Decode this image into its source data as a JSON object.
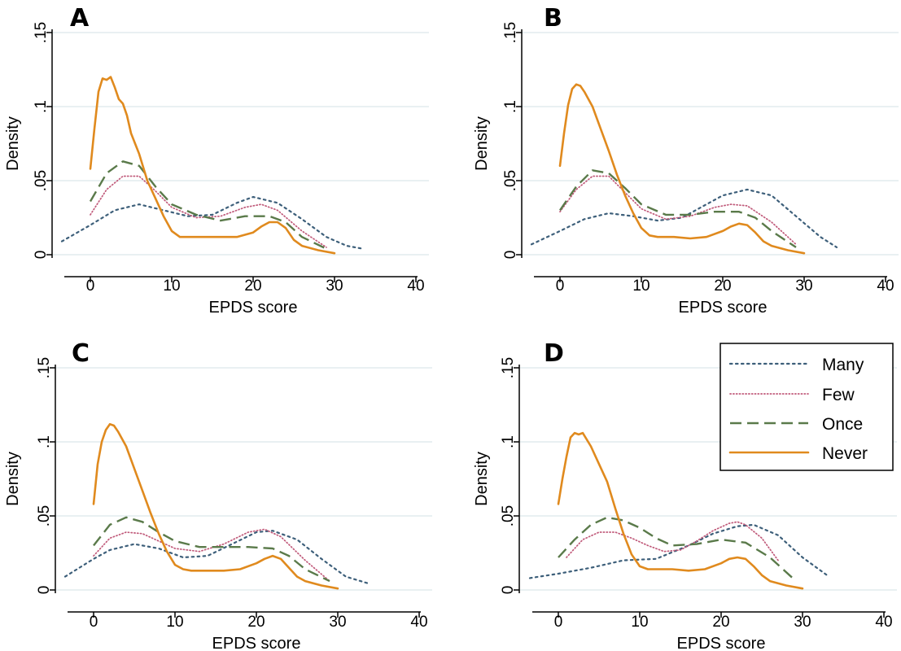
{
  "colors": {
    "grid": "#dce8ea",
    "axis": "#000000",
    "many": "#3d5f7a",
    "few": "#c05a7a",
    "once": "#5a7a4a",
    "never": "#e08a1e"
  },
  "legend": {
    "items": [
      {
        "key": "many",
        "label": "Many",
        "style": "dotted"
      },
      {
        "key": "few",
        "label": "Few",
        "style": "fine-dotted"
      },
      {
        "key": "once",
        "label": "Once",
        "style": "dashed"
      },
      {
        "key": "never",
        "label": "Never",
        "style": "solid"
      }
    ]
  },
  "chart_data": [
    {
      "type": "line",
      "panel": "A",
      "xlabel": "EPDS score",
      "ylabel": "Density",
      "xlim": [
        -4,
        40
      ],
      "ylim": [
        0,
        0.15
      ],
      "xticks": [
        0,
        10,
        20,
        30,
        40
      ],
      "yticks": [
        0,
        0.05,
        0.1,
        0.15
      ],
      "ytick_labels": [
        "0",
        ".05",
        ".1",
        ".15"
      ],
      "grid": true,
      "series": [
        {
          "name": "Many",
          "key": "many",
          "style": "dotted",
          "x": [
            -3.5,
            0,
            3,
            6,
            9,
            12,
            15,
            18,
            20,
            23,
            26,
            29,
            31.5,
            33.5
          ],
          "y": [
            0.009,
            0.02,
            0.03,
            0.034,
            0.03,
            0.026,
            0.027,
            0.035,
            0.039,
            0.035,
            0.024,
            0.012,
            0.006,
            0.004
          ]
        },
        {
          "name": "Few",
          "key": "few",
          "style": "fine-dotted",
          "x": [
            0,
            2,
            4,
            6,
            8,
            10,
            13,
            16,
            19,
            21,
            23,
            26,
            29
          ],
          "y": [
            0.027,
            0.044,
            0.053,
            0.053,
            0.043,
            0.032,
            0.025,
            0.026,
            0.032,
            0.034,
            0.03,
            0.016,
            0.005
          ]
        },
        {
          "name": "Once",
          "key": "once",
          "style": "dashed",
          "x": [
            0,
            2,
            4,
            6,
            8,
            10,
            13,
            16,
            19,
            22,
            24,
            26,
            29
          ],
          "y": [
            0.036,
            0.055,
            0.063,
            0.06,
            0.046,
            0.034,
            0.027,
            0.023,
            0.026,
            0.026,
            0.022,
            0.012,
            0.004
          ]
        },
        {
          "name": "Never",
          "key": "never",
          "style": "solid",
          "x": [
            0,
            0.5,
            1,
            1.5,
            2,
            2.5,
            3,
            3.5,
            4,
            4.5,
            5,
            5.5,
            6,
            7,
            8,
            9,
            10,
            11,
            12,
            14,
            16,
            18,
            20,
            21,
            22,
            23,
            24,
            25,
            26,
            28,
            30
          ],
          "y": [
            0.058,
            0.085,
            0.11,
            0.119,
            0.118,
            0.12,
            0.113,
            0.105,
            0.102,
            0.094,
            0.082,
            0.075,
            0.068,
            0.05,
            0.038,
            0.026,
            0.016,
            0.012,
            0.012,
            0.012,
            0.012,
            0.012,
            0.015,
            0.019,
            0.022,
            0.022,
            0.018,
            0.01,
            0.006,
            0.003,
            0.001
          ]
        }
      ]
    },
    {
      "type": "line",
      "panel": "B",
      "xlabel": "EPDS score",
      "ylabel": "Density",
      "xlim": [
        -4,
        40
      ],
      "ylim": [
        0,
        0.15
      ],
      "xticks": [
        0,
        10,
        20,
        30,
        40
      ],
      "yticks": [
        0,
        0.05,
        0.1,
        0.15
      ],
      "ytick_labels": [
        "0",
        ".05",
        ".1",
        ".15"
      ],
      "grid": true,
      "series": [
        {
          "name": "Many",
          "key": "many",
          "style": "dotted",
          "x": [
            -3.5,
            0,
            3,
            6,
            9,
            12,
            15,
            18,
            20,
            23,
            26,
            29,
            32,
            34
          ],
          "y": [
            0.007,
            0.016,
            0.024,
            0.028,
            0.026,
            0.023,
            0.025,
            0.034,
            0.04,
            0.044,
            0.04,
            0.026,
            0.012,
            0.005
          ]
        },
        {
          "name": "Few",
          "key": "few",
          "style": "fine-dotted",
          "x": [
            0,
            2,
            4,
            6,
            8,
            10,
            13,
            16,
            19,
            21,
            23,
            26,
            29
          ],
          "y": [
            0.029,
            0.044,
            0.053,
            0.053,
            0.042,
            0.031,
            0.024,
            0.026,
            0.032,
            0.034,
            0.033,
            0.022,
            0.007
          ]
        },
        {
          "name": "Once",
          "key": "once",
          "style": "dashed",
          "x": [
            0,
            2,
            4,
            6,
            8,
            10,
            13,
            16,
            19,
            22,
            24,
            26,
            29
          ],
          "y": [
            0.03,
            0.046,
            0.057,
            0.055,
            0.045,
            0.034,
            0.027,
            0.027,
            0.029,
            0.029,
            0.025,
            0.016,
            0.005
          ]
        },
        {
          "name": "Never",
          "key": "never",
          "style": "solid",
          "x": [
            0,
            0.5,
            1,
            1.5,
            2,
            2.5,
            3,
            4,
            5,
            6,
            7,
            8,
            9,
            10,
            11,
            12,
            14,
            16,
            18,
            20,
            21,
            22,
            23,
            24,
            25,
            26,
            28,
            30
          ],
          "y": [
            0.06,
            0.082,
            0.101,
            0.112,
            0.115,
            0.114,
            0.11,
            0.1,
            0.085,
            0.07,
            0.054,
            0.04,
            0.028,
            0.018,
            0.013,
            0.012,
            0.012,
            0.011,
            0.012,
            0.016,
            0.019,
            0.021,
            0.02,
            0.015,
            0.009,
            0.006,
            0.003,
            0.001
          ]
        }
      ]
    },
    {
      "type": "line",
      "panel": "C",
      "xlabel": "EPDS score",
      "ylabel": "Density",
      "xlim": [
        -4,
        40
      ],
      "ylim": [
        0,
        0.15
      ],
      "xticks": [
        0,
        10,
        20,
        30,
        40
      ],
      "yticks": [
        0,
        0.05,
        0.1,
        0.15
      ],
      "ytick_labels": [
        "0",
        ".05",
        ".1",
        ".15"
      ],
      "grid": true,
      "series": [
        {
          "name": "Many",
          "key": "many",
          "style": "dotted",
          "x": [
            -3.5,
            0,
            2,
            5,
            8,
            11,
            14,
            17,
            20,
            22,
            25,
            28,
            31,
            34
          ],
          "y": [
            0.009,
            0.021,
            0.027,
            0.031,
            0.028,
            0.022,
            0.023,
            0.031,
            0.039,
            0.04,
            0.034,
            0.021,
            0.009,
            0.004
          ]
        },
        {
          "name": "Few",
          "key": "few",
          "style": "fine-dotted",
          "x": [
            0,
            2,
            4,
            6,
            8,
            10,
            13,
            16,
            19,
            21,
            23,
            26,
            29
          ],
          "y": [
            0.023,
            0.035,
            0.039,
            0.038,
            0.033,
            0.028,
            0.026,
            0.031,
            0.039,
            0.041,
            0.036,
            0.02,
            0.006
          ]
        },
        {
          "name": "Once",
          "key": "once",
          "style": "dashed",
          "x": [
            0,
            2,
            4,
            6,
            8,
            10,
            13,
            16,
            19,
            22,
            24,
            26,
            29
          ],
          "y": [
            0.03,
            0.044,
            0.049,
            0.046,
            0.039,
            0.033,
            0.029,
            0.029,
            0.029,
            0.028,
            0.023,
            0.014,
            0.006
          ]
        },
        {
          "name": "Never",
          "key": "never",
          "style": "solid",
          "x": [
            0,
            0.5,
            1,
            1.5,
            2,
            2.5,
            3,
            4,
            5,
            6,
            7,
            8,
            9,
            10,
            11,
            12,
            14,
            16,
            18,
            20,
            21,
            22,
            23,
            24,
            25,
            26,
            28,
            30
          ],
          "y": [
            0.058,
            0.085,
            0.1,
            0.108,
            0.112,
            0.111,
            0.107,
            0.097,
            0.082,
            0.067,
            0.052,
            0.038,
            0.026,
            0.017,
            0.014,
            0.013,
            0.013,
            0.013,
            0.014,
            0.018,
            0.021,
            0.023,
            0.021,
            0.015,
            0.009,
            0.006,
            0.003,
            0.001
          ]
        }
      ]
    },
    {
      "type": "line",
      "panel": "D",
      "xlabel": "EPDS score",
      "ylabel": "Density",
      "xlim": [
        -4,
        40
      ],
      "ylim": [
        0,
        0.15
      ],
      "xticks": [
        0,
        10,
        20,
        30,
        40
      ],
      "yticks": [
        0,
        0.05,
        0.1,
        0.15
      ],
      "ytick_labels": [
        "0",
        ".05",
        ".1",
        ".15"
      ],
      "grid": true,
      "series": [
        {
          "name": "Many",
          "key": "many",
          "style": "dotted",
          "x": [
            -3.5,
            0,
            4,
            8,
            12,
            16,
            19,
            22,
            24,
            27,
            30,
            33
          ],
          "y": [
            0.008,
            0.011,
            0.015,
            0.02,
            0.021,
            0.03,
            0.038,
            0.043,
            0.044,
            0.037,
            0.022,
            0.01
          ]
        },
        {
          "name": "Few",
          "key": "few",
          "style": "fine-dotted",
          "x": [
            1,
            3,
            5,
            7,
            9,
            11,
            13,
            15,
            17,
            19,
            21,
            22,
            23,
            25,
            27
          ],
          "y": [
            0.022,
            0.034,
            0.039,
            0.039,
            0.035,
            0.03,
            0.026,
            0.027,
            0.033,
            0.04,
            0.045,
            0.046,
            0.044,
            0.035,
            0.02
          ]
        },
        {
          "name": "Once",
          "key": "once",
          "style": "dashed",
          "x": [
            0,
            2,
            4,
            6,
            8,
            10,
            12,
            14,
            17,
            20,
            23,
            26,
            29
          ],
          "y": [
            0.022,
            0.034,
            0.044,
            0.049,
            0.047,
            0.042,
            0.035,
            0.03,
            0.031,
            0.034,
            0.032,
            0.022,
            0.007
          ]
        },
        {
          "name": "Never",
          "key": "never",
          "style": "solid",
          "x": [
            0,
            0.5,
            1,
            1.5,
            2,
            2.5,
            3,
            4,
            5,
            6,
            7,
            8,
            9,
            10,
            11,
            12,
            14,
            16,
            18,
            20,
            21,
            22,
            23,
            24,
            25,
            26,
            28,
            30
          ],
          "y": [
            0.058,
            0.075,
            0.09,
            0.103,
            0.106,
            0.105,
            0.106,
            0.097,
            0.085,
            0.073,
            0.055,
            0.038,
            0.024,
            0.016,
            0.014,
            0.014,
            0.014,
            0.013,
            0.014,
            0.018,
            0.021,
            0.022,
            0.021,
            0.016,
            0.01,
            0.006,
            0.003,
            0.001
          ]
        }
      ]
    }
  ]
}
